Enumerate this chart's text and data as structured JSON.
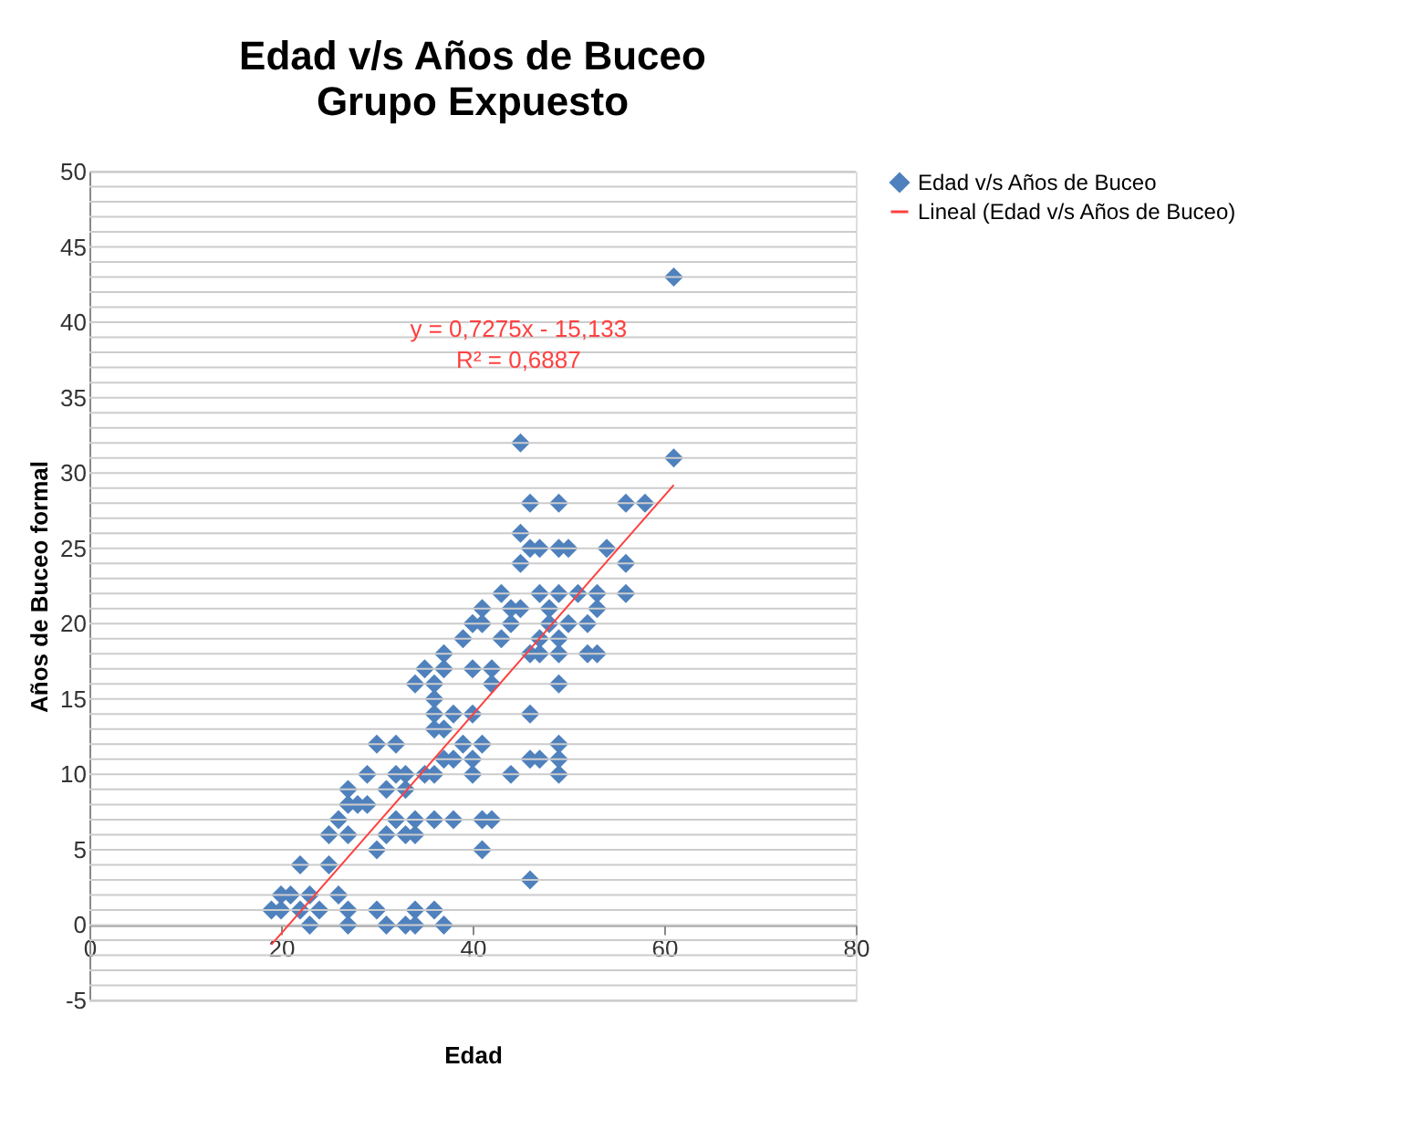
{
  "chart_data": {
    "type": "scatter",
    "title": "Edad v/s Años de Buceo",
    "subtitle": "Grupo Expuesto",
    "xlabel": "Edad",
    "ylabel": "Años de Buceo formal",
    "xlim": [
      0,
      80
    ],
    "xticks": [
      0,
      20,
      40,
      60,
      80
    ],
    "ylim": [
      -5,
      50
    ],
    "yticks": [
      -5,
      {
        "value": -4,
        "label": null
      },
      {
        "value": -3,
        "label": null
      },
      {
        "value": -2,
        "label": null
      },
      {
        "value": -1,
        "label": null
      },
      0,
      {
        "value": 1,
        "label": null
      },
      {
        "value": 2,
        "label": null
      },
      {
        "value": 3,
        "label": null
      },
      {
        "value": 4,
        "label": null
      },
      5,
      {
        "value": 6,
        "label": null
      },
      {
        "value": 7,
        "label": null
      },
      {
        "value": 8,
        "label": null
      },
      {
        "value": 9,
        "label": null
      },
      10,
      {
        "value": 11,
        "label": null
      },
      {
        "value": 12,
        "label": null
      },
      {
        "value": 13,
        "label": null
      },
      {
        "value": 14,
        "label": null
      },
      15,
      {
        "value": 16,
        "label": null
      },
      {
        "value": 17,
        "label": null
      },
      {
        "value": 18,
        "label": null
      },
      {
        "value": 19,
        "label": null
      },
      20,
      {
        "value": 21,
        "label": null
      },
      {
        "value": 22,
        "label": null
      },
      {
        "value": 23,
        "label": null
      },
      {
        "value": 24,
        "label": null
      },
      25,
      {
        "value": 26,
        "label": null
      },
      {
        "value": 27,
        "label": null
      },
      {
        "value": 28,
        "label": null
      },
      {
        "value": 29,
        "label": null
      },
      30,
      {
        "value": 31,
        "label": null
      },
      {
        "value": 32,
        "label": null
      },
      {
        "value": 33,
        "label": null
      },
      {
        "value": 34,
        "label": null
      },
      35,
      {
        "value": 36,
        "label": null
      },
      {
        "value": 37,
        "label": null
      },
      {
        "value": 38,
        "label": null
      },
      {
        "value": 39,
        "label": null
      },
      40,
      {
        "value": 41,
        "label": null
      },
      {
        "value": 42,
        "label": null
      },
      {
        "value": 43,
        "label": null
      },
      {
        "value": 44,
        "label": null
      },
      45,
      {
        "value": 46,
        "label": null
      },
      {
        "value": 47,
        "label": null
      },
      {
        "value": 48,
        "label": null
      },
      {
        "value": 49,
        "label": null
      },
      50
    ],
    "grid": "y",
    "legend": "right",
    "annotations": [
      "y = 0,7275x - 15,133",
      "R² = 0,6887"
    ],
    "series": [
      {
        "name": "Edad v/s Años de Buceo",
        "color": "#4f81bd",
        "marker": "diamond",
        "x": [
          61,
          61,
          45,
          46,
          49,
          56,
          58,
          45,
          46,
          47,
          49,
          50,
          54,
          45,
          56,
          56,
          43,
          47,
          49,
          51,
          53,
          41,
          44,
          45,
          48,
          53,
          40,
          41,
          44,
          48,
          50,
          52,
          39,
          43,
          47,
          49,
          37,
          46,
          47,
          49,
          52,
          53,
          35,
          37,
          40,
          42,
          34,
          36,
          42,
          49,
          36,
          36,
          38,
          40,
          46,
          36,
          37,
          30,
          32,
          39,
          41,
          49,
          37,
          38,
          40,
          46,
          47,
          49,
          29,
          32,
          33,
          35,
          36,
          40,
          44,
          49,
          27,
          31,
          33,
          27,
          28,
          29,
          26,
          32,
          34,
          36,
          38,
          41,
          42,
          25,
          27,
          31,
          33,
          34,
          30,
          41,
          22,
          25,
          46,
          20,
          21,
          23,
          26,
          19,
          20,
          22,
          24,
          27,
          30,
          34,
          36,
          23,
          27,
          31,
          33,
          34,
          37
        ],
        "values": [
          43,
          31,
          32,
          28,
          28,
          28,
          28,
          26,
          25,
          25,
          25,
          25,
          25,
          24,
          24,
          22,
          22,
          22,
          22,
          22,
          22,
          21,
          21,
          21,
          21,
          21,
          20,
          20,
          20,
          20,
          20,
          20,
          19,
          19,
          19,
          19,
          18,
          18,
          18,
          18,
          18,
          18,
          17,
          17,
          17,
          17,
          16,
          16,
          16,
          16,
          15,
          14,
          14,
          14,
          14,
          13,
          13,
          12,
          12,
          12,
          12,
          12,
          11,
          11,
          11,
          11,
          11,
          11,
          10,
          10,
          10,
          10,
          10,
          10,
          10,
          10,
          9,
          9,
          9,
          8,
          8,
          8,
          7,
          7,
          7,
          7,
          7,
          7,
          7,
          6,
          6,
          6,
          6,
          6,
          5,
          5,
          4,
          4,
          3,
          2,
          2,
          2,
          2,
          1,
          1,
          1,
          1,
          1,
          1,
          1,
          1,
          0,
          0,
          0,
          0,
          0,
          0
        ]
      },
      {
        "name": "Lineal (Edad v/s Años de Buceo)",
        "color": "#ff4040",
        "type": "line",
        "x": [
          19,
          61
        ],
        "values": [
          -1.3,
          29.2
        ]
      }
    ]
  }
}
